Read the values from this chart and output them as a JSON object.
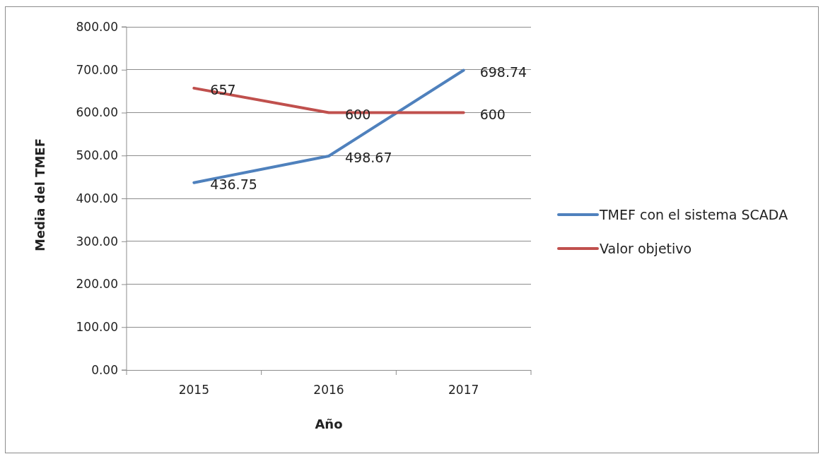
{
  "chart_data": {
    "type": "line",
    "xlabel": "Año",
    "ylabel": "Media del TMEF",
    "categories": [
      "2015",
      "2016",
      "2017"
    ],
    "series": [
      {
        "name": "TMEF con el sistema SCADA",
        "color": "#4f81bd",
        "values": [
          436.75,
          498.67,
          698.74
        ]
      },
      {
        "name": "Valor objetivo",
        "color": "#c0504d",
        "values": [
          657,
          600,
          600
        ]
      }
    ],
    "ylim": [
      0,
      800
    ],
    "yticks": [
      {
        "value": 0,
        "label": "0.00"
      },
      {
        "value": 100,
        "label": "100.00"
      },
      {
        "value": 200,
        "label": "200.00"
      },
      {
        "value": 300,
        "label": "300.00"
      },
      {
        "value": 400,
        "label": "400.00"
      },
      {
        "value": 500,
        "label": "500.00"
      },
      {
        "value": 600,
        "label": "600.00"
      },
      {
        "value": 700,
        "label": "700.00"
      },
      {
        "value": 800,
        "label": "800.00"
      }
    ],
    "grid": "y",
    "legend": "right",
    "marker": "none",
    "line_style": "solid",
    "data_labels": true
  }
}
